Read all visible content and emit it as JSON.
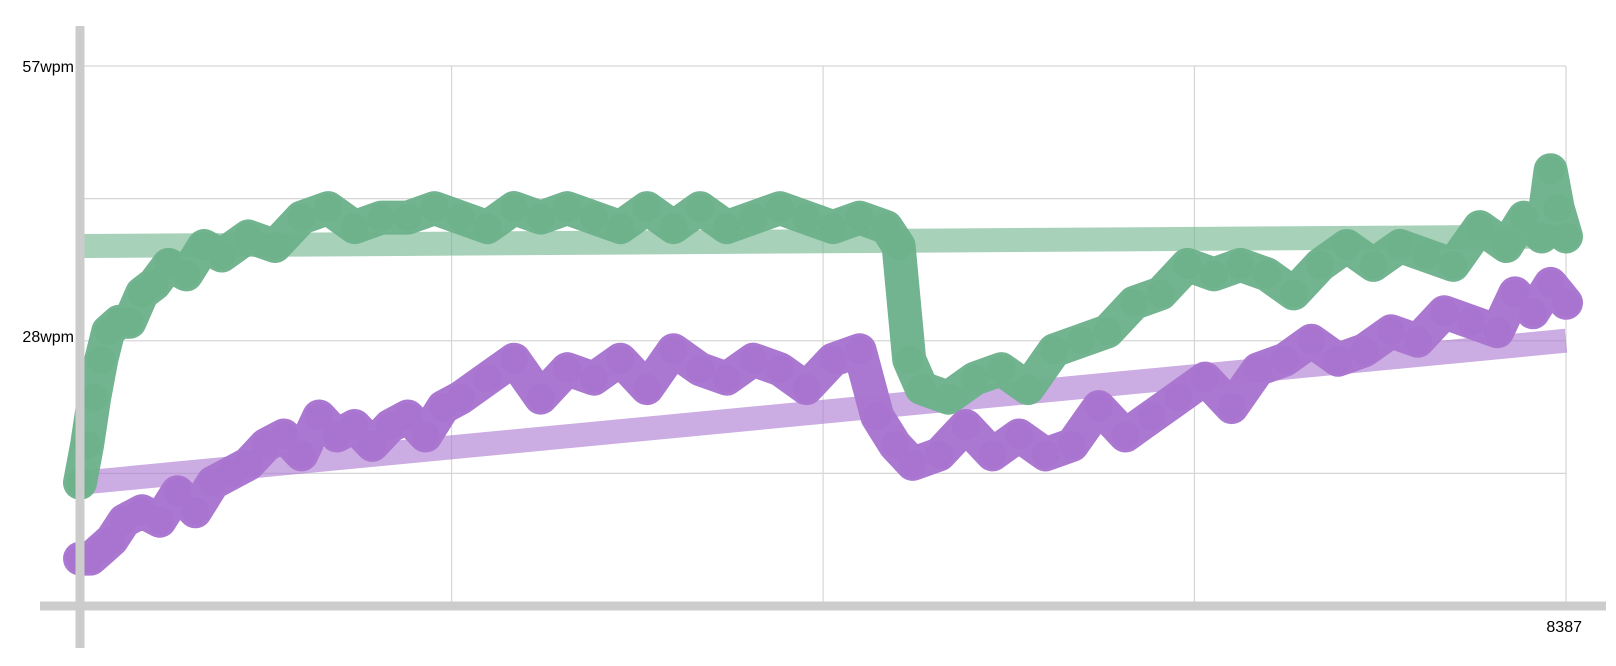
{
  "chart_data": {
    "type": "line",
    "title": "",
    "xlabel": "",
    "ylabel": "",
    "y_unit": "wpm",
    "x_range": [
      0,
      8387
    ],
    "y_range": [
      0,
      57
    ],
    "y_tick_labels": [
      {
        "value": 57,
        "label": "57wpm"
      },
      {
        "value": 28,
        "label": "28wpm"
      }
    ],
    "x_tick_labels": [
      {
        "value": 8387,
        "label": "8387"
      }
    ],
    "y_gridlines": [
      14,
      28,
      43,
      57
    ],
    "x_gridlines": [
      2097,
      4194,
      6290,
      8387
    ],
    "grid": true,
    "legend": "none",
    "series": [
      {
        "color": "#6db28b",
        "x": [
          0,
          40,
          80,
          120,
          160,
          220,
          280,
          350,
          420,
          500,
          600,
          700,
          800,
          950,
          1100,
          1250,
          1400,
          1550,
          1700,
          1850,
          2000,
          2150,
          2300,
          2450,
          2600,
          2750,
          2900,
          3050,
          3200,
          3350,
          3500,
          3650,
          3800,
          3950,
          4100,
          4250,
          4400,
          4550,
          4620,
          4680,
          4750,
          4900,
          5050,
          5200,
          5350,
          5500,
          5650,
          5800,
          5950,
          6100,
          6250,
          6400,
          6550,
          6700,
          6850,
          7000,
          7150,
          7300,
          7450,
          7600,
          7750,
          7900,
          8050,
          8150,
          8250,
          8300,
          8340,
          8387
        ],
        "y": [
          13,
          17,
          22,
          26,
          29,
          30,
          30,
          33,
          34,
          36,
          35,
          38,
          37,
          39,
          38,
          41,
          42,
          40,
          41,
          41,
          42,
          41,
          40,
          42,
          41,
          42,
          41,
          40,
          42,
          40,
          42,
          40,
          41,
          42,
          41,
          40,
          41,
          40,
          38,
          26,
          23,
          22,
          24,
          25,
          23,
          27,
          28,
          29,
          32,
          33,
          36,
          35,
          36,
          35,
          33,
          36,
          38,
          36,
          38,
          37,
          36,
          40,
          38,
          41,
          39,
          46,
          42,
          39
        ]
      },
      {
        "color": "#a874d0",
        "x": [
          0,
          60,
          120,
          180,
          250,
          350,
          450,
          550,
          650,
          750,
          850,
          950,
          1050,
          1150,
          1250,
          1350,
          1450,
          1550,
          1650,
          1750,
          1850,
          1950,
          2050,
          2150,
          2300,
          2450,
          2600,
          2750,
          2900,
          3050,
          3200,
          3350,
          3500,
          3650,
          3800,
          3950,
          4100,
          4250,
          4400,
          4500,
          4600,
          4700,
          4850,
          5000,
          5150,
          5300,
          5450,
          5600,
          5750,
          5900,
          6050,
          6200,
          6350,
          6500,
          6650,
          6800,
          6950,
          7100,
          7250,
          7400,
          7550,
          7700,
          7850,
          8000,
          8100,
          8200,
          8300,
          8387
        ],
        "y": [
          5,
          5,
          6,
          7,
          9,
          10,
          9,
          12,
          10,
          13,
          14,
          15,
          17,
          18,
          16,
          20,
          18,
          19,
          17,
          19,
          20,
          18,
          21,
          22,
          24,
          26,
          22,
          25,
          24,
          26,
          23,
          27,
          25,
          24,
          26,
          25,
          23,
          26,
          27,
          20,
          17,
          15,
          16,
          19,
          16,
          18,
          16,
          17,
          21,
          18,
          20,
          22,
          24,
          21,
          25,
          26,
          28,
          26,
          27,
          29,
          28,
          31,
          30,
          29,
          33,
          31,
          34,
          32
        ]
      }
    ],
    "trend_lines": [
      {
        "color": "#6db28b",
        "x": [
          0,
          8387
        ],
        "y": [
          38,
          39
        ]
      },
      {
        "color": "#a874d0",
        "x": [
          0,
          8387
        ],
        "y": [
          13,
          28
        ]
      }
    ]
  }
}
